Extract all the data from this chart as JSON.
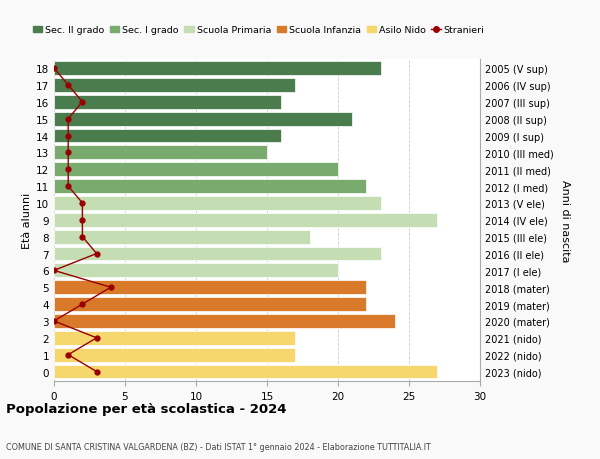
{
  "ages": [
    18,
    17,
    16,
    15,
    14,
    13,
    12,
    11,
    10,
    9,
    8,
    7,
    6,
    5,
    4,
    3,
    2,
    1,
    0
  ],
  "years": [
    "2005 (V sup)",
    "2006 (IV sup)",
    "2007 (III sup)",
    "2008 (II sup)",
    "2009 (I sup)",
    "2010 (III med)",
    "2011 (II med)",
    "2012 (I med)",
    "2013 (V ele)",
    "2014 (IV ele)",
    "2015 (III ele)",
    "2016 (II ele)",
    "2017 (I ele)",
    "2018 (mater)",
    "2019 (mater)",
    "2020 (mater)",
    "2021 (nido)",
    "2022 (nido)",
    "2023 (nido)"
  ],
  "bar_values": [
    23,
    17,
    16,
    21,
    16,
    15,
    20,
    22,
    23,
    27,
    18,
    23,
    20,
    22,
    22,
    24,
    17,
    17,
    27
  ],
  "bar_colors": [
    "#4a7c4e",
    "#4a7c4e",
    "#4a7c4e",
    "#4a7c4e",
    "#4a7c4e",
    "#7aab6e",
    "#7aab6e",
    "#7aab6e",
    "#c5ddb2",
    "#c5ddb2",
    "#c5ddb2",
    "#c5ddb2",
    "#c5ddb2",
    "#d97a2a",
    "#d97a2a",
    "#d97a2a",
    "#f5d76e",
    "#f5d76e",
    "#f5d76e"
  ],
  "stranieri_values": [
    0,
    1,
    2,
    1,
    1,
    1,
    1,
    1,
    2,
    2,
    2,
    3,
    0,
    4,
    2,
    0,
    3,
    1,
    3
  ],
  "stranieri_color": "#990000",
  "legend_labels": [
    "Sec. II grado",
    "Sec. I grado",
    "Scuola Primaria",
    "Scuola Infanzia",
    "Asilo Nido",
    "Stranieri"
  ],
  "legend_colors": [
    "#4a7c4e",
    "#7aab6e",
    "#c5ddb2",
    "#d97a2a",
    "#f5d76e",
    "#990000"
  ],
  "ylabel_left": "Età alunni",
  "ylabel_right": "Anni di nascita",
  "title": "Popolazione per età scolastica - 2024",
  "subtitle": "COMUNE DI SANTA CRISTINA VALGARDENA (BZ) - Dati ISTAT 1° gennaio 2024 - Elaborazione TUTTITALIA.IT",
  "xlim": [
    0,
    30
  ],
  "xticks": [
    0,
    5,
    10,
    15,
    20,
    25,
    30
  ],
  "background_color": "#f9f9f9",
  "bar_background": "#ffffff",
  "grid_color": "#cccccc"
}
